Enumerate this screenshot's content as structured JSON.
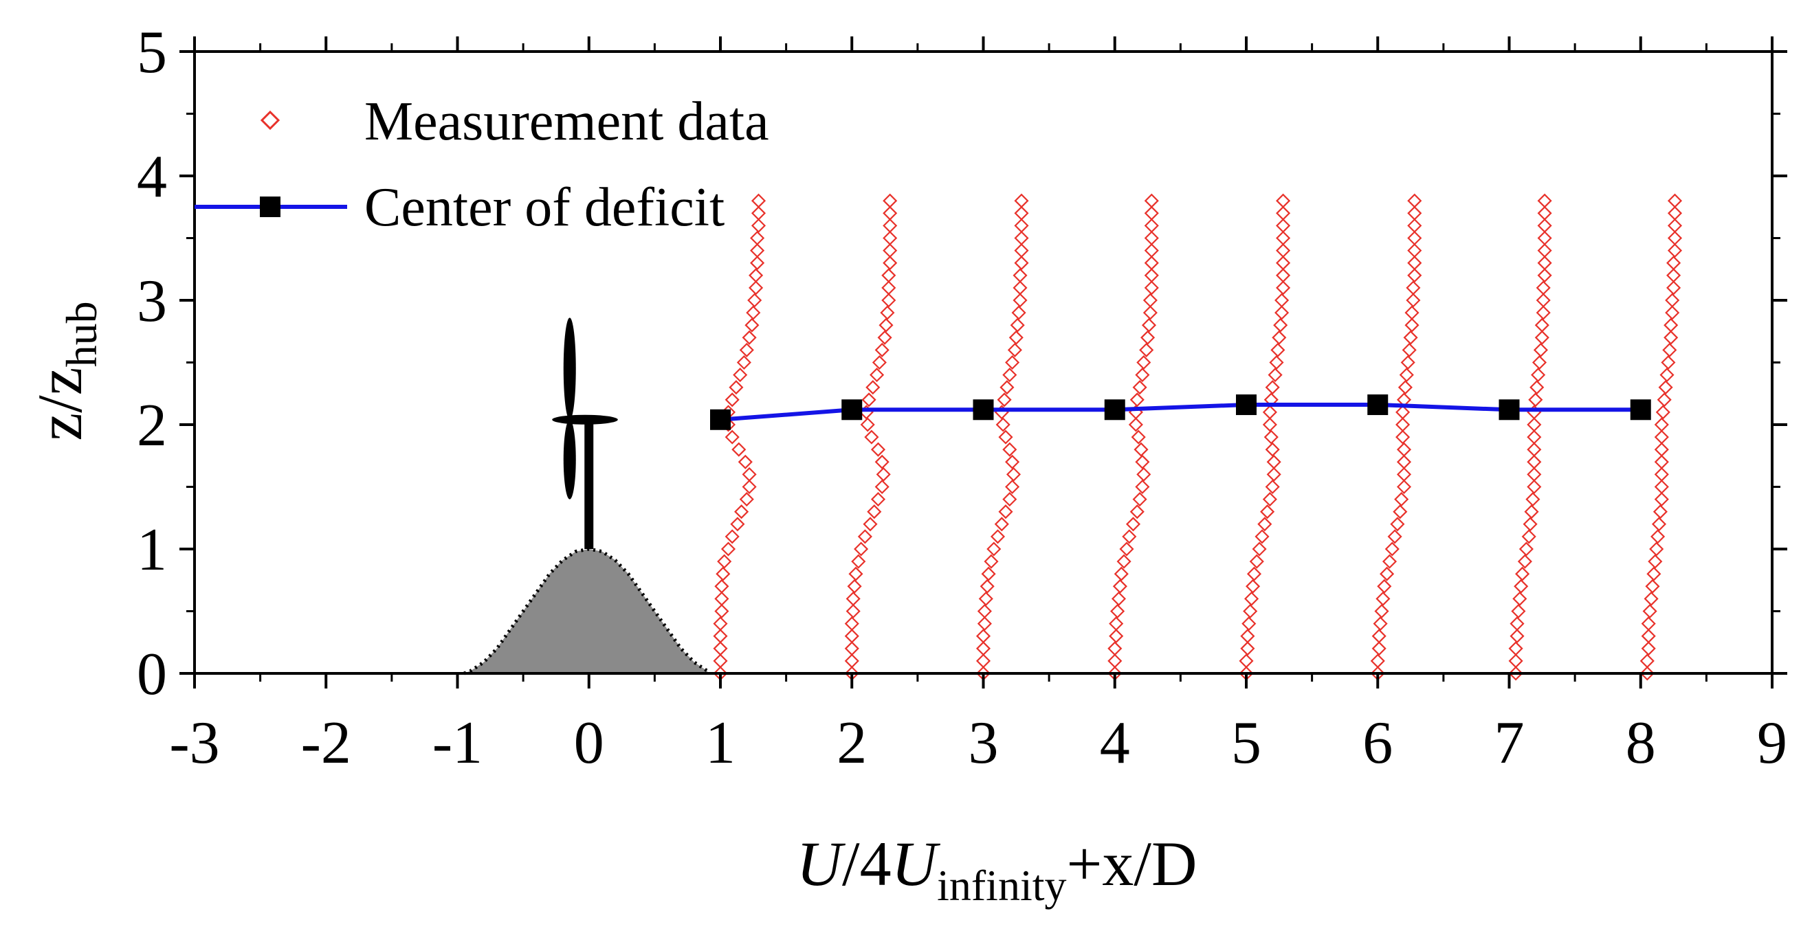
{
  "chart_data": {
    "type": "scatter",
    "xlabel": {
      "parts": [
        "U",
        "/4",
        "U",
        "infinity",
        "+x/D"
      ]
    },
    "ylabel": {
      "parts": [
        "z/z",
        "hub"
      ]
    },
    "xlim": [
      -3,
      9
    ],
    "ylim": [
      0,
      5
    ],
    "xticks": [
      -3,
      -2,
      -1,
      0,
      1,
      2,
      3,
      4,
      5,
      6,
      7,
      8,
      9
    ],
    "yticks": [
      0,
      1,
      2,
      3,
      4,
      5
    ],
    "grid": false,
    "legend": {
      "position": "top-left"
    },
    "colors": {
      "measurement": "#e8312a",
      "center_line": "#1414e6",
      "center_marker": "#000000",
      "hill_fill": "#8a8a8a",
      "turbine": "#000000"
    },
    "series": [
      {
        "name": "Measurement data",
        "kind": "profiles",
        "marker": "diamond-open",
        "y": [
          0.0,
          0.1,
          0.2,
          0.3,
          0.4,
          0.5,
          0.6,
          0.7,
          0.8,
          0.9,
          1.0,
          1.1,
          1.2,
          1.3,
          1.4,
          1.5,
          1.6,
          1.7,
          1.8,
          1.9,
          2.0,
          2.1,
          2.2,
          2.3,
          2.4,
          2.5,
          2.6,
          2.7,
          2.8,
          2.9,
          3.0,
          3.1,
          3.2,
          3.3,
          3.4,
          3.5,
          3.6,
          3.7,
          3.8
        ],
        "profiles": [
          {
            "station": 1,
            "x": [
              1.0,
              1.0,
              1.0,
              1.0,
              1.0,
              1.01,
              1.01,
              1.01,
              1.02,
              1.03,
              1.06,
              1.09,
              1.13,
              1.16,
              1.2,
              1.22,
              1.22,
              1.19,
              1.14,
              1.09,
              1.06,
              1.06,
              1.09,
              1.12,
              1.15,
              1.18,
              1.2,
              1.22,
              1.24,
              1.25,
              1.26,
              1.27,
              1.27,
              1.28,
              1.28,
              1.28,
              1.29,
              1.29,
              1.29
            ]
          },
          {
            "station": 2,
            "x": [
              2.0,
              2.0,
              2.0,
              2.0,
              2.0,
              2.01,
              2.01,
              2.02,
              2.03,
              2.05,
              2.07,
              2.1,
              2.14,
              2.17,
              2.2,
              2.23,
              2.24,
              2.23,
              2.2,
              2.15,
              2.12,
              2.11,
              2.13,
              2.16,
              2.19,
              2.21,
              2.23,
              2.25,
              2.26,
              2.27,
              2.28,
              2.28,
              2.28,
              2.29,
              2.29,
              2.29,
              2.29,
              2.29,
              2.29
            ]
          },
          {
            "station": 3,
            "x": [
              3.0,
              3.0,
              3.0,
              3.0,
              3.01,
              3.01,
              3.02,
              3.03,
              3.04,
              3.06,
              3.08,
              3.11,
              3.14,
              3.17,
              3.2,
              3.22,
              3.23,
              3.22,
              3.2,
              3.17,
              3.15,
              3.14,
              3.16,
              3.18,
              3.2,
              3.22,
              3.24,
              3.25,
              3.26,
              3.27,
              3.28,
              3.28,
              3.28,
              3.29,
              3.29,
              3.29,
              3.29,
              3.29,
              3.29
            ]
          },
          {
            "station": 4,
            "x": [
              4.0,
              4.0,
              4.0,
              4.01,
              4.01,
              4.02,
              4.03,
              4.04,
              4.05,
              4.07,
              4.09,
              4.11,
              4.14,
              4.17,
              4.19,
              4.21,
              4.22,
              4.21,
              4.2,
              4.18,
              4.16,
              4.16,
              4.17,
              4.19,
              4.21,
              4.22,
              4.24,
              4.25,
              4.26,
              4.27,
              4.27,
              4.28,
              4.28,
              4.28,
              4.28,
              4.28,
              4.28,
              4.28,
              4.28
            ]
          },
          {
            "station": 5,
            "x": [
              5.0,
              5.0,
              5.01,
              5.01,
              5.02,
              5.03,
              5.04,
              5.05,
              5.06,
              5.08,
              5.1,
              5.12,
              5.14,
              5.16,
              5.18,
              5.2,
              5.21,
              5.21,
              5.2,
              5.19,
              5.18,
              5.18,
              5.19,
              5.2,
              5.22,
              5.23,
              5.24,
              5.25,
              5.26,
              5.27,
              5.27,
              5.28,
              5.28,
              5.28,
              5.28,
              5.28,
              5.28,
              5.28,
              5.28
            ]
          },
          {
            "station": 6,
            "x": [
              6.0,
              6.0,
              6.01,
              6.01,
              6.02,
              6.03,
              6.04,
              6.05,
              6.07,
              6.09,
              6.11,
              6.13,
              6.15,
              6.17,
              6.18,
              6.2,
              6.2,
              6.2,
              6.2,
              6.19,
              6.19,
              6.19,
              6.2,
              6.21,
              6.22,
              6.23,
              6.24,
              6.25,
              6.26,
              6.26,
              6.27,
              6.27,
              6.28,
              6.28,
              6.28,
              6.28,
              6.28,
              6.28,
              6.28
            ]
          },
          {
            "station": 7,
            "x": [
              7.05,
              7.05,
              7.05,
              7.06,
              7.06,
              7.07,
              7.08,
              7.09,
              7.1,
              7.12,
              7.13,
              7.15,
              7.16,
              7.17,
              7.18,
              7.19,
              7.19,
              7.19,
              7.19,
              7.19,
              7.19,
              7.19,
              7.2,
              7.21,
              7.22,
              7.23,
              7.24,
              7.25,
              7.25,
              7.26,
              7.26,
              7.26,
              7.27,
              7.27,
              7.27,
              7.27,
              7.27,
              7.27,
              7.27
            ]
          },
          {
            "station": 8,
            "x": [
              8.05,
              8.05,
              8.06,
              8.06,
              8.06,
              8.07,
              8.08,
              8.09,
              8.1,
              8.11,
              8.12,
              8.13,
              8.14,
              8.15,
              8.16,
              8.16,
              8.16,
              8.16,
              8.16,
              8.16,
              8.16,
              8.17,
              8.18,
              8.19,
              8.2,
              8.21,
              8.22,
              8.23,
              8.23,
              8.24,
              8.24,
              8.25,
              8.25,
              8.25,
              8.26,
              8.26,
              8.26,
              8.26,
              8.26
            ]
          }
        ]
      },
      {
        "name": "Center of deficit",
        "kind": "line-markers",
        "marker": "square-filled",
        "x": [
          1,
          2,
          3,
          4,
          5,
          6,
          7,
          8
        ],
        "y": [
          2.04,
          2.12,
          2.12,
          2.12,
          2.16,
          2.16,
          2.12,
          2.12
        ]
      }
    ],
    "terrain": {
      "hill_x": [
        -0.95,
        -0.9,
        -0.8,
        -0.7,
        -0.6,
        -0.5,
        -0.4,
        -0.3,
        -0.2,
        -0.1,
        0.0,
        0.1,
        0.2,
        0.3,
        0.4,
        0.5,
        0.6,
        0.7,
        0.8,
        0.9
      ],
      "hill_y": [
        0.0,
        0.02,
        0.09,
        0.2,
        0.35,
        0.5,
        0.65,
        0.8,
        0.91,
        0.98,
        1.0,
        0.98,
        0.91,
        0.8,
        0.65,
        0.5,
        0.35,
        0.2,
        0.09,
        0.02
      ],
      "turbine": {
        "x": 0.0,
        "base_y": 1.0,
        "hub_y": 2.04,
        "blade_tip_top": 2.86,
        "blade_tip_bottom": 1.4,
        "blade_tip_left": -0.28,
        "blade_tip_right": 0.22
      }
    }
  }
}
